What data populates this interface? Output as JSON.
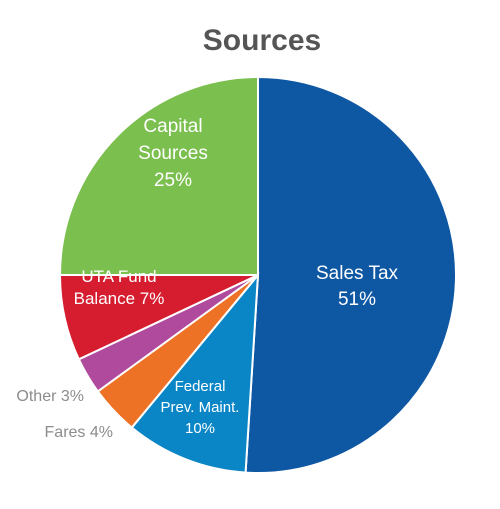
{
  "chart_data": {
    "type": "pie",
    "title": "Sources",
    "slices": [
      {
        "label_lines": [
          "Sales Tax",
          "51%"
        ],
        "value": 51,
        "color": "#0e57a3"
      },
      {
        "label_lines": [
          "Federal",
          "Prev. Maint.",
          "10%"
        ],
        "value": 10,
        "color": "#0a86c6"
      },
      {
        "label_lines": [
          "Fares 4%"
        ],
        "value": 4,
        "color": "#ed7226"
      },
      {
        "label_lines": [
          "Other 3%"
        ],
        "value": 3,
        "color": "#b04a9d"
      },
      {
        "label_lines": [
          "UTA Fund",
          "Balance 7%"
        ],
        "value": 7,
        "color": "#d51d2f"
      },
      {
        "label_lines": [
          "Capital",
          "Sources",
          "25%"
        ],
        "value": 25,
        "color": "#7bbf4f"
      }
    ],
    "legend": "none"
  }
}
